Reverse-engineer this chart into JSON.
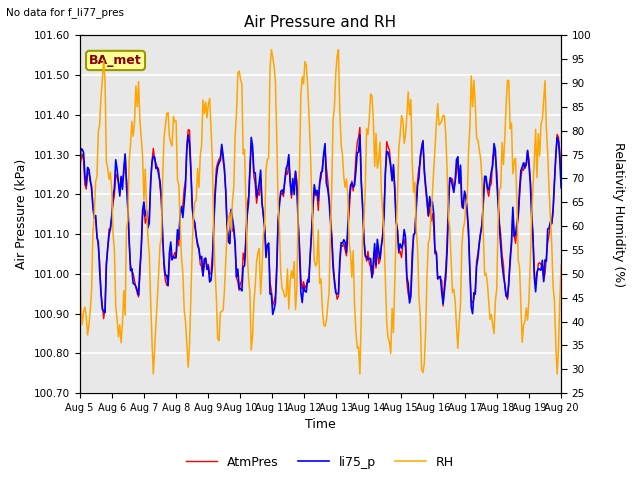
{
  "title": "Air Pressure and RH",
  "suptitle": "No data for f_li77_pres",
  "xlabel": "Time",
  "ylabel_left": "Air Pressure (kPa)",
  "ylabel_right": "Relativity Humidity (%)",
  "ylim_left": [
    100.7,
    101.6
  ],
  "ylim_right": [
    25,
    100
  ],
  "yticks_left": [
    100.7,
    100.8,
    100.9,
    101.0,
    101.1,
    101.2,
    101.3,
    101.4,
    101.5,
    101.6
  ],
  "yticks_right": [
    25,
    30,
    35,
    40,
    45,
    50,
    55,
    60,
    65,
    70,
    75,
    80,
    85,
    90,
    95,
    100
  ],
  "xticklabels": [
    "Aug 5",
    "Aug 6",
    "Aug 7",
    "Aug 8",
    "Aug 9",
    "Aug 10",
    "Aug 11",
    "Aug 12",
    "Aug 13",
    "Aug 14",
    "Aug 15",
    "Aug 16",
    "Aug 17",
    "Aug 18",
    "Aug 19",
    "Aug 20"
  ],
  "color_atm": "#ff0000",
  "color_li75": "#0000ff",
  "color_rh": "#ffa500",
  "label_atm": "AtmPres",
  "label_li75": "li75_p",
  "label_rh": "RH",
  "box_label": "BA_met",
  "box_color": "#ffff99",
  "box_edge": "#999900",
  "fig_bg": "#ffffff",
  "plot_bg": "#e8e8e8",
  "grid_color": "#ffffff",
  "n_points": 360
}
